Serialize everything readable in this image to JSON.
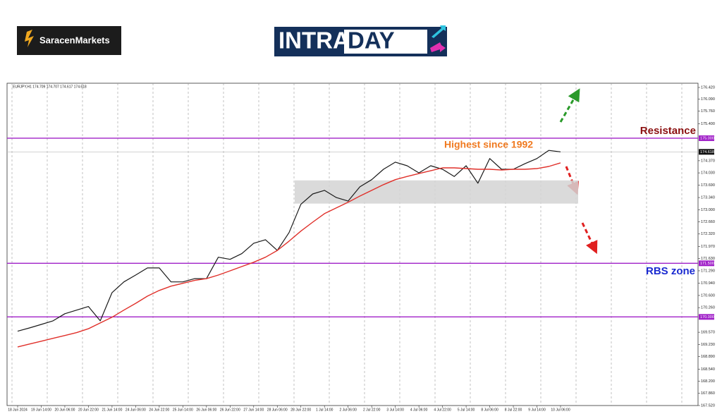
{
  "logos": {
    "broker": "SaracenMarkets",
    "brand_left": "INTRA",
    "brand_right": "DAY"
  },
  "chart_data": {
    "type": "line",
    "title": "EURJPY,H1  174.709 174.707 174.617 174.618",
    "categories": [
      "18 Jun 2024",
      null,
      "19 Jun 14:00",
      null,
      "20 Jun 06:00",
      null,
      "20 Jun 22:00",
      null,
      "21 Jun 14:00",
      null,
      "24 Jun 06:00",
      null,
      "24 Jun 22:00",
      null,
      "25 Jun 14:00",
      null,
      "26 Jun 06:00",
      null,
      "26 Jun 22:00",
      null,
      "27 Jun 14:00",
      null,
      "28 Jun 06:00",
      null,
      "28 Jun 22:00",
      null,
      "1 Jul 14:00",
      null,
      "2 Jul 06:00",
      null,
      "2 Jul 22:00",
      null,
      "3 Jul 14:00",
      null,
      "4 Jul 06:00",
      null,
      "4 Jul 22:00",
      null,
      "5 Jul 14:00",
      null,
      "8 Jul 06:00",
      null,
      "8 Jul 22:00",
      null,
      "9 Jul 14:00",
      null,
      "10 Jul 06:00"
    ],
    "series": [
      {
        "color": "#1a1a1a",
        "values": [
          169.6,
          169.69,
          169.79,
          169.89,
          170.09,
          170.19,
          170.29,
          169.89,
          170.68,
          170.98,
          171.17,
          171.37,
          171.37,
          170.98,
          170.98,
          171.07,
          171.07,
          171.67,
          171.61,
          171.77,
          172.06,
          172.16,
          171.86,
          172.36,
          173.15,
          173.44,
          173.54,
          173.34,
          173.24,
          173.64,
          173.84,
          174.13,
          174.33,
          174.23,
          174.03,
          174.23,
          174.13,
          173.93,
          174.23,
          173.74,
          174.43,
          174.13,
          174.13,
          174.29,
          174.43,
          174.66,
          174.618
        ]
      },
      {
        "color": "#e0302a",
        "values": [
          169.16,
          169.24,
          169.32,
          169.4,
          169.48,
          169.56,
          169.67,
          169.83,
          169.99,
          170.19,
          170.38,
          170.58,
          170.74,
          170.86,
          170.94,
          171.02,
          171.07,
          171.17,
          171.29,
          171.41,
          171.53,
          171.67,
          171.86,
          172.12,
          172.4,
          172.65,
          172.89,
          173.05,
          173.21,
          173.38,
          173.54,
          173.7,
          173.84,
          173.93,
          174.01,
          174.09,
          174.17,
          174.17,
          174.15,
          174.13,
          174.13,
          174.11,
          174.13,
          174.13,
          174.15,
          174.21,
          174.31
        ]
      }
    ],
    "ylim": [
      167.52,
      176.42
    ],
    "yticks": [
      {
        "value": 176.42,
        "label": "176.420"
      },
      {
        "value": 176.09,
        "label": "176.090"
      },
      {
        "value": 175.76,
        "label": "175.760"
      },
      {
        "value": 175.4,
        "label": "175.400"
      },
      {
        "value": 174.37,
        "label": "174.370"
      },
      {
        "value": 174.03,
        "label": "174.030"
      },
      {
        "value": 173.69,
        "label": "173.690"
      },
      {
        "value": 173.34,
        "label": "173.340"
      },
      {
        "value": 173,
        "label": "173.000"
      },
      {
        "value": 172.66,
        "label": "172.660"
      },
      {
        "value": 172.32,
        "label": "172.320"
      },
      {
        "value": 171.97,
        "label": "171.970"
      },
      {
        "value": 171.63,
        "label": "171.630"
      },
      {
        "value": 171.29,
        "label": "171.290"
      },
      {
        "value": 170.94,
        "label": "170.940"
      },
      {
        "value": 170.6,
        "label": "170.600"
      },
      {
        "value": 170.26,
        "label": "170.260"
      },
      {
        "value": 169.57,
        "label": "169.570"
      },
      {
        "value": 169.23,
        "label": "169.230"
      },
      {
        "value": 168.89,
        "label": "168.890"
      },
      {
        "value": 168.54,
        "label": "168.540"
      },
      {
        "value": 168.2,
        "label": "168.200"
      },
      {
        "value": 167.86,
        "label": "167.860"
      },
      {
        "value": 167.52,
        "label": "167.520"
      }
    ],
    "levels": [
      {
        "value": 175,
        "label": "175.000",
        "color": "#a020c8"
      },
      {
        "value": 171.5,
        "label": "171.500",
        "color": "#a020c8"
      },
      {
        "value": 170,
        "label": "170.000",
        "color": "#a020c8"
      }
    ],
    "current_price": {
      "value": 174.618,
      "label": "174.618"
    },
    "zone": [
      173.82,
      173.17
    ],
    "annotations": {
      "resistance": "Resistance",
      "highest": "Highest since 1992",
      "rbs": "RBS zone"
    }
  }
}
